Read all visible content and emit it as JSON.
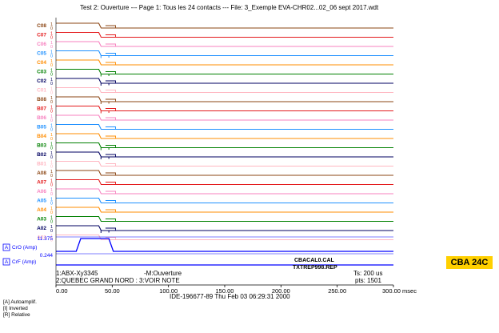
{
  "header": {
    "title": "Test 2: Ouverture --- Page 1: Tous les 24 contacts --- File: 3_Exemple EVA-CHR02...02_06 sept 2017.wdt"
  },
  "badge": "CBA 24C",
  "legend_keys": [
    {
      "key": "[A]",
      "label": "Autoamplif."
    },
    {
      "key": "[I]",
      "label": "Inverted"
    },
    {
      "key": "[R]",
      "label": "Relative"
    }
  ],
  "info": {
    "line1": "1:ABX-Xy3345",
    "line2": "2:QUEBEC GRAND NORD : 3:VOIR NOTE",
    "mode": "-M:Ouverture",
    "cal": "CBACAL0.CAL",
    "rep": "TXTREP998.REP",
    "ts": "Ts: 200 us",
    "pts": "pts: 1501",
    "footer": "IDE-196677-89    Thu Feb 03 06:29:31 2000"
  },
  "chart_data": {
    "type": "line",
    "x_unit": "msec",
    "xlim": [
      0,
      300
    ],
    "x_ticks": [
      0,
      50,
      100,
      150,
      200,
      250,
      300
    ],
    "x_tick_labels": [
      "0.00",
      "50.00",
      "100.00",
      "150.00",
      "200.00",
      "250.00",
      "300.00 msec"
    ],
    "channels": [
      {
        "name": "C08",
        "color": "#8b4513",
        "high": "1",
        "low": "0",
        "drop": 38,
        "step2": 53,
        "spike": false
      },
      {
        "name": "C07",
        "color": "#e41a1c",
        "high": "1",
        "low": "0",
        "drop": 38,
        "step2": 53,
        "spike": false
      },
      {
        "name": "C06",
        "color": "#f781bf",
        "high": "1",
        "low": "0",
        "drop": 38,
        "step2": 53,
        "spike": false
      },
      {
        "name": "C05",
        "color": "#1e90ff",
        "high": "1",
        "low": "0",
        "drop": 38,
        "step2": 53,
        "spike": true
      },
      {
        "name": "C04",
        "color": "#ff8c00",
        "high": "1",
        "low": "0",
        "drop": 38,
        "step2": 53,
        "spike": false
      },
      {
        "name": "C03",
        "color": "#008000",
        "high": "1",
        "low": "0",
        "drop": 38,
        "step2": 53,
        "spike": true
      },
      {
        "name": "C02",
        "color": "#000060",
        "high": "1",
        "low": "0",
        "drop": 38,
        "step2": 53,
        "spike": true
      },
      {
        "name": "C01",
        "color": "#ffb6c1",
        "high": "1",
        "low": "0",
        "drop": 38,
        "step2": 53,
        "spike": false
      },
      {
        "name": "B08",
        "color": "#8b4513",
        "high": "1",
        "low": "0",
        "drop": 38,
        "step2": 53,
        "spike": true
      },
      {
        "name": "B07",
        "color": "#e41a1c",
        "high": "1",
        "low": "0",
        "drop": 38,
        "step2": 53,
        "spike": true
      },
      {
        "name": "B06",
        "color": "#f781bf",
        "high": "1",
        "low": "0",
        "drop": 38,
        "step2": 53,
        "spike": false
      },
      {
        "name": "B05",
        "color": "#1e90ff",
        "high": "1",
        "low": "0",
        "drop": 38,
        "step2": 53,
        "spike": false
      },
      {
        "name": "B04",
        "color": "#ff8c00",
        "high": "1",
        "low": "0",
        "drop": 38,
        "step2": 53,
        "spike": false
      },
      {
        "name": "B03",
        "color": "#008000",
        "high": "1",
        "low": "0",
        "drop": 38,
        "step2": 53,
        "spike": true
      },
      {
        "name": "B02",
        "color": "#000060",
        "high": "1",
        "low": "0",
        "drop": 38,
        "step2": 53,
        "spike": true
      },
      {
        "name": "B01",
        "color": "#ffb6c1",
        "high": "1",
        "low": "0",
        "drop": 38,
        "step2": 53,
        "spike": false
      },
      {
        "name": "A08",
        "color": "#8b4513",
        "high": "1",
        "low": "0",
        "drop": 38,
        "step2": 53,
        "spike": false
      },
      {
        "name": "A07",
        "color": "#e41a1c",
        "high": "1",
        "low": "0",
        "drop": 38,
        "step2": 53,
        "spike": false
      },
      {
        "name": "A06",
        "color": "#f781bf",
        "high": "1",
        "low": "0",
        "drop": 38,
        "step2": 53,
        "spike": false
      },
      {
        "name": "A05",
        "color": "#1e90ff",
        "high": "1",
        "low": "0",
        "drop": 38,
        "step2": 53,
        "spike": false
      },
      {
        "name": "A04",
        "color": "#ff8c00",
        "high": "1",
        "low": "0",
        "drop": 38,
        "step2": 53,
        "spike": false
      },
      {
        "name": "A03",
        "color": "#008000",
        "high": "1",
        "low": "0",
        "drop": 38,
        "step2": 53,
        "spike": false
      },
      {
        "name": "A02",
        "color": "#000060",
        "high": "1",
        "low": "0",
        "drop": 38,
        "step2": 53,
        "spike": true
      },
      {
        "name": "A01",
        "color": "#ffb6c1",
        "high": "1",
        "low": "0",
        "drop": 38,
        "step2": 53,
        "spike": false
      }
    ],
    "analog": [
      {
        "name": "CrO (Amp)",
        "flag": "A",
        "color": "#0000ff",
        "max_label": "11.375",
        "points": [
          [
            0,
            0
          ],
          [
            18,
            0
          ],
          [
            22,
            1
          ],
          [
            47,
            1
          ],
          [
            51,
            0
          ],
          [
            300,
            0
          ]
        ]
      },
      {
        "name": "CrF (Amp)",
        "flag": "A",
        "color": "#0000ff",
        "max_label": "0.244",
        "points": [
          [
            0,
            0
          ],
          [
            300,
            0
          ]
        ]
      }
    ]
  }
}
